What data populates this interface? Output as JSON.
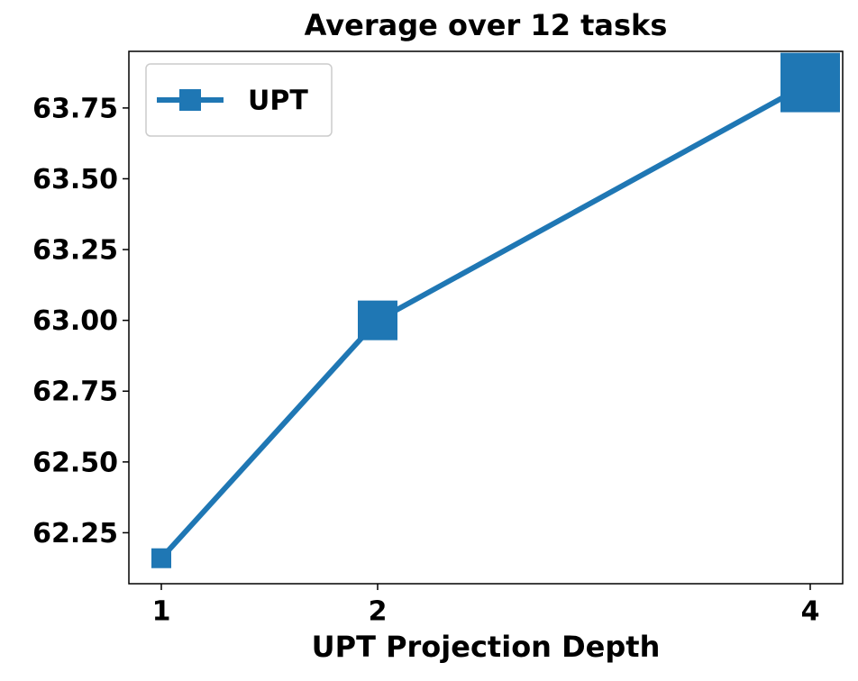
{
  "chart_data": {
    "type": "line",
    "title": "Average over 12 tasks",
    "xlabel": "UPT Projection Depth",
    "x": [
      1,
      2,
      4
    ],
    "series": [
      {
        "name": "UPT",
        "color": "#1f77b4",
        "values": [
          62.16,
          63.0,
          63.84
        ]
      }
    ],
    "xlim": [
      0.85,
      4.15
    ],
    "xticks": [
      1,
      2,
      4
    ],
    "ylim": [
      62.07,
      63.95
    ],
    "yticks": [
      62.25,
      {
        "value": 62.5,
        "label": "62.50"
      },
      62.75,
      {
        "value": 63,
        "label": "63.00"
      },
      63.25,
      {
        "value": 63.5,
        "label": "63.50"
      },
      63.75
    ],
    "grid": false,
    "legend": "upper left"
  }
}
